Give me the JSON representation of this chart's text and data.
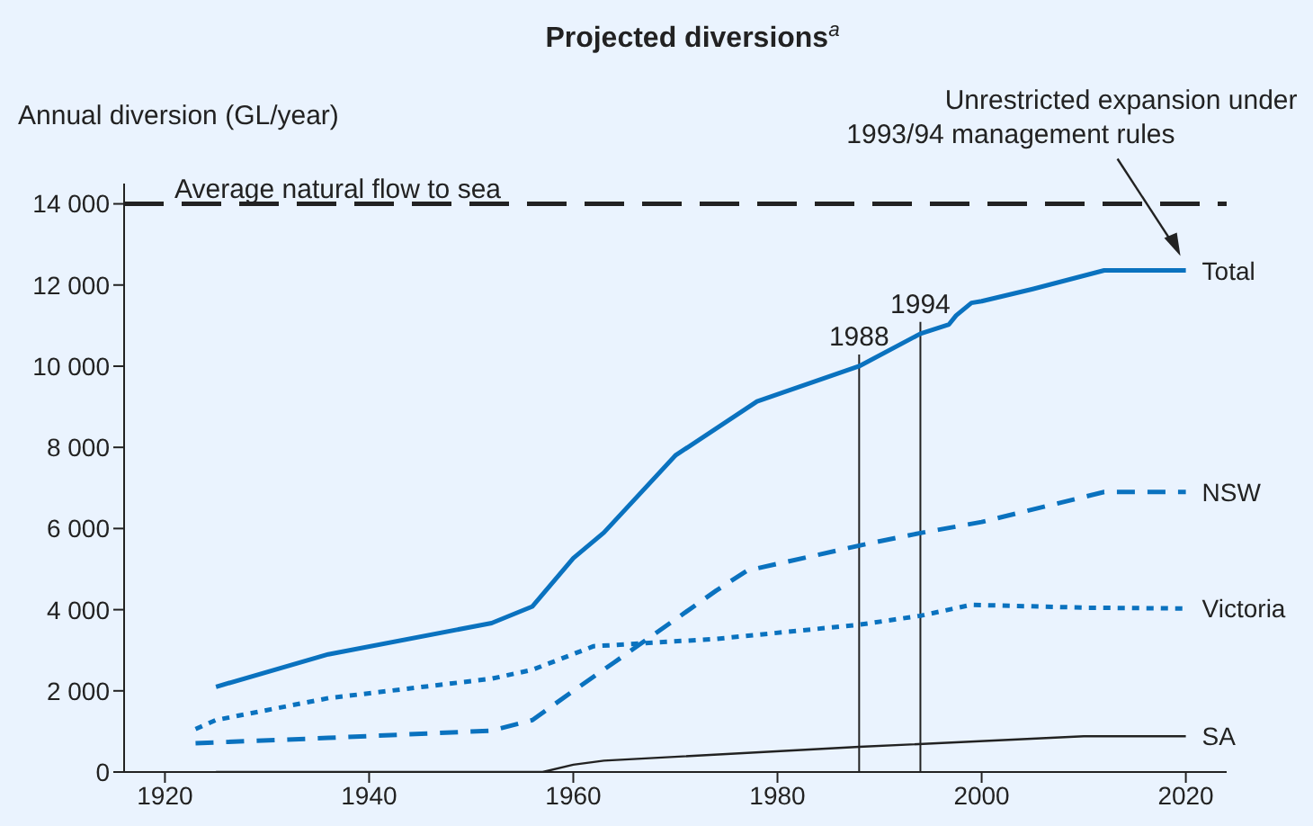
{
  "chart_data": {
    "type": "line",
    "title": "Projected diversions$^{a}$",
    "ylabel": "Annual diversion (GL/year)",
    "xlim": [
      1916,
      2024
    ],
    "xticks": [
      1920,
      1940,
      1960,
      1980,
      2000,
      2020
    ],
    "ylim": [
      0,
      14500
    ],
    "yticks": [
      {
        "value": 0,
        "label": "0"
      },
      {
        "value": 2000,
        "label": "2 000"
      },
      {
        "value": 4000,
        "label": "4 000"
      },
      {
        "value": 6000,
        "label": "6 000"
      },
      {
        "value": 8000,
        "label": "8 000"
      },
      {
        "value": 10000,
        "label": "10 000"
      },
      {
        "value": 12000,
        "label": "12 000"
      },
      {
        "value": 14000,
        "label": "14 000"
      }
    ],
    "marker": "none",
    "series": [
      {
        "name": "Total",
        "color": "#0a72bf",
        "line_style": "solid",
        "x": [
          1925,
          1936,
          1952,
          1956,
          1960,
          1963,
          1970,
          1978,
          1988,
          1994,
          1996.8,
          1997.5,
          1999,
          2000,
          2005,
          2012,
          2020
        ],
        "values": [
          2100,
          2900,
          3670,
          4080,
          5270,
          5900,
          7800,
          9130,
          10000,
          10800,
          11030,
          11250,
          11560,
          11600,
          11900,
          12360,
          12360
        ]
      },
      {
        "name": "NSW",
        "color": "#0a72bf",
        "line_style": "dashed",
        "x": [
          1923,
          1936,
          1952,
          1956,
          1960,
          1964,
          1974,
          1977,
          1988,
          1994,
          2000,
          2012,
          2020
        ],
        "values": [
          710,
          840,
          1020,
          1280,
          2000,
          2700,
          4470,
          4960,
          5580,
          5890,
          6160,
          6900,
          6900
        ]
      },
      {
        "name": "Victoria",
        "color": "#0a72bf",
        "line_style": "dotted",
        "x": [
          1923,
          1925,
          1936,
          1952,
          1956,
          1962,
          1974,
          1988,
          1994,
          1999,
          2010,
          2020
        ],
        "values": [
          1060,
          1280,
          1820,
          2300,
          2520,
          3100,
          3280,
          3630,
          3850,
          4120,
          4050,
          4030
        ]
      },
      {
        "name": "SA",
        "color": "#222222",
        "line_style": "solid",
        "x": [
          1925,
          1957,
          1960,
          1963,
          1988,
          2010,
          2020
        ],
        "values": [
          0,
          0,
          180,
          280,
          620,
          880,
          880
        ]
      }
    ],
    "ref_lines": [
      {
        "axis": "y",
        "value": 14000,
        "label": "Average natural flow to sea",
        "color": "#222222",
        "line_style": "dashed"
      },
      {
        "axis": "x",
        "value": 1988,
        "label": "1988",
        "color": "#222222",
        "line_style": "solid"
      },
      {
        "axis": "x",
        "value": 1994,
        "label": "1994",
        "color": "#222222",
        "line_style": "solid"
      }
    ],
    "annotations": [
      "Unrestricted expansion under 1993/94 management rules"
    ]
  }
}
